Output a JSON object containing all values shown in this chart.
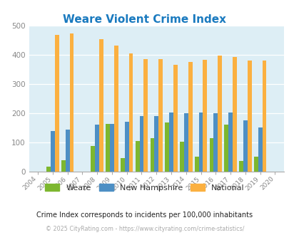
{
  "title": "Weare Violent Crime Index",
  "years": [
    2004,
    2005,
    2006,
    2007,
    2008,
    2009,
    2010,
    2011,
    2012,
    2013,
    2014,
    2015,
    2016,
    2017,
    2018,
    2019,
    2020
  ],
  "weare": [
    0,
    18,
    40,
    0,
    88,
    163,
    47,
    105,
    115,
    168,
    102,
    52,
    115,
    160,
    37,
    50,
    0
  ],
  "new_hampshire": [
    0,
    140,
    143,
    0,
    160,
    163,
    170,
    190,
    190,
    202,
    200,
    202,
    200,
    202,
    175,
    152,
    0
  ],
  "national": [
    0,
    470,
    474,
    0,
    455,
    432,
    405,
    387,
    387,
    367,
    377,
    384,
    398,
    394,
    380,
    380,
    0
  ],
  "weare_color": "#7db72f",
  "nh_color": "#4d8fc4",
  "national_color": "#fbb040",
  "bg_color": "#ddeef5",
  "ylim": [
    0,
    500
  ],
  "yticks": [
    0,
    100,
    200,
    300,
    400,
    500
  ],
  "subtitle": "Crime Index corresponds to incidents per 100,000 inhabitants",
  "footer": "© 2025 CityRating.com - https://www.cityrating.com/crime-statistics/",
  "legend_labels": [
    "Weare",
    "New Hampshire",
    "National"
  ],
  "bar_width": 0.28
}
